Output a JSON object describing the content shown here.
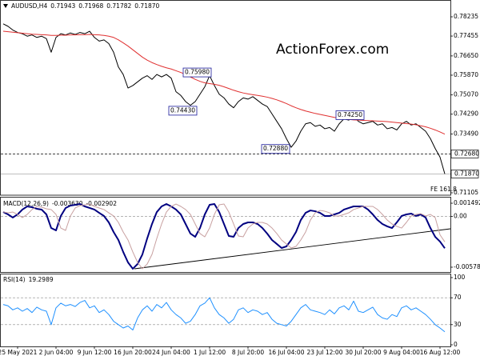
{
  "chart_data": [
    {
      "type": "line",
      "title": "AUDUSD,H4",
      "header_values": [
        0.71943,
        0.71968,
        0.71782,
        {
          "value": 0.7187,
          "label": "0.71870"
        }
      ],
      "watermark": "ActionForex.com",
      "fe_label": "FE 161.8",
      "categories": [
        null,
        null,
        null,
        "25 May 2021",
        null,
        null,
        null,
        null,
        null,
        null,
        null,
        "2 Jun 04:00",
        null,
        null,
        null,
        null,
        null,
        null,
        null,
        "9 Jun 12:00",
        null,
        null,
        null,
        null,
        null,
        null,
        null,
        "16 Jun 20:00",
        null,
        null,
        null,
        null,
        null,
        null,
        null,
        "24 Jun 04:00",
        null,
        null,
        null,
        null,
        null,
        null,
        null,
        "1 Jul 12:00",
        null,
        null,
        null,
        null,
        null,
        null,
        null,
        "8 Jul 20:00",
        null,
        null,
        null,
        null,
        null,
        null,
        null,
        "16 Jul 04:00",
        null,
        null,
        null,
        null,
        null,
        null,
        null,
        "23 Jul 12:00",
        null,
        null,
        null,
        null,
        null,
        null,
        null,
        "30 Jul 20:00",
        null,
        null,
        null,
        null,
        null,
        null,
        null,
        "9 Aug 04:00",
        null,
        null,
        null,
        null,
        null,
        null,
        null,
        "16 Aug 12:00",
        null
      ],
      "series": [
        {
          "color": "#000000",
          "values": [
            0.7795,
            0.7785,
            0.777,
            0.776,
            0.7755,
            0.7745,
            0.775,
            0.774,
            0.7745,
            0.7735,
            0.768,
            0.774,
            0.7755,
            0.775,
            0.7758,
            0.7752,
            0.776,
            0.7755,
            0.7765,
            0.774,
            0.7725,
            0.773,
            0.7715,
            0.768,
            0.762,
            0.759,
            0.7535,
            0.7545,
            0.756,
            0.7575,
            0.7585,
            0.757,
            0.759,
            0.758,
            0.759,
            0.7575,
            0.752,
            0.7505,
            0.748,
            0.7465,
            0.748,
            0.751,
            0.754,
            0.7585,
            0.7545,
            0.751,
            0.7495,
            0.747,
            0.7455,
            0.748,
            0.7495,
            0.749,
            0.75,
            0.7485,
            0.747,
            0.746,
            0.743,
            0.74,
            0.737,
            0.733,
            0.7295,
            0.732,
            0.736,
            0.739,
            0.7395,
            0.738,
            0.7385,
            0.737,
            0.7375,
            0.736,
            0.739,
            0.741,
            0.7405,
            0.742,
            0.74,
            0.739,
            0.7395,
            0.74,
            0.7385,
            0.739,
            0.737,
            0.7375,
            0.7365,
            0.739,
            0.74,
            0.7385,
            0.739,
            0.7375,
            0.736,
            0.733,
            0.729,
            0.7255,
            0.7187
          ]
        },
        {
          "color": "#e03030",
          "values": [
            0.7765,
            0.7763,
            0.7761,
            0.7759,
            0.7757,
            0.7755,
            0.7753,
            0.7752,
            0.7751,
            0.775,
            0.7748,
            0.7748,
            0.7749,
            0.7749,
            0.775,
            0.775,
            0.7751,
            0.7751,
            0.7752,
            0.7751,
            0.775,
            0.7748,
            0.7745,
            0.774,
            0.773,
            0.7718,
            0.7705,
            0.769,
            0.7675,
            0.766,
            0.7648,
            0.7638,
            0.763,
            0.7623,
            0.7617,
            0.7612,
            0.7605,
            0.7598,
            0.759,
            0.758,
            0.757,
            0.7562,
            0.7556,
            0.7553,
            0.755,
            0.7546,
            0.754,
            0.7533,
            0.7526,
            0.752,
            0.7515,
            0.7511,
            0.7508,
            0.7505,
            0.7502,
            0.7498,
            0.7493,
            0.7487,
            0.748,
            0.7472,
            0.7463,
            0.7455,
            0.7448,
            0.7442,
            0.7437,
            0.7432,
            0.7428,
            0.7424,
            0.742,
            0.7416,
            0.7413,
            0.741,
            0.7408,
            0.7406,
            0.7405,
            0.7404,
            0.7403,
            0.7402,
            0.7401,
            0.74,
            0.7399,
            0.7397,
            0.7395,
            0.7393,
            0.7391,
            0.7389,
            0.7386,
            0.7382,
            0.7378,
            0.7372,
            0.7365,
            0.7357,
            0.7348
          ]
        }
      ],
      "annotations": [
        {
          "value": 0.7598,
          "label": "0.75980"
        },
        {
          "value": 0.7443,
          "label": "0.74430"
        },
        {
          "value": 0.7288,
          "label": "0.72880"
        },
        {
          "value": 0.7425,
          "label": "0.74250"
        }
      ],
      "ylim": [
        0.7104,
        0.78786
      ],
      "yticks": [
        0.78235,
        0.77455,
        {
          "value": 0.7665,
          "label": "0.76650"
        },
        {
          "value": 0.7587,
          "label": "0.75870"
        },
        {
          "value": 0.7507,
          "label": "0.75070"
        },
        {
          "value": 0.7429,
          "label": "0.74290"
        },
        {
          "value": 0.7349,
          "label": "0.73490"
        },
        {
          "value": 0.7268,
          "label": "0.72680",
          "boxed": true,
          "line": "dashed"
        },
        {
          "value": 0.7187,
          "label": "0.71870",
          "boxed": true,
          "line": "solid"
        },
        0.71105
      ],
      "grid": false
    },
    {
      "type": "line",
      "title": "MACD(12,26,9)",
      "header_values": [
        {
          "value": -0.00363,
          "label": "-0.003630"
        },
        -0.002902
      ],
      "series": [
        {
          "color": "#000080",
          "width": 2,
          "values": [
            0.00049,
            0.00022,
            -0.00014,
            0.00022,
            0.00077,
            0.00113,
            0.00104,
            0.00086,
            0.00077,
            0.00022,
            -0.00133,
            -0.0016,
            4e-05,
            0.00095,
            0.00122,
            0.00131,
            0.0014,
            0.00113,
            0.00095,
            0.00077,
            0.0004,
            4e-05,
            -0.00069,
            -0.00178,
            -0.00269,
            -0.00405,
            -0.00524,
            -0.00596,
            -0.00542,
            -0.00433,
            -0.00251,
            -0.00087,
            0.00049,
            0.00113,
            0.0014,
            0.00113,
            0.00077,
            0.00022,
            -0.00087,
            -0.00196,
            -0.00233,
            -0.00133,
            0.00022,
            0.00131,
            0.0014,
            0.00049,
            -0.00087,
            -0.00224,
            -0.00233,
            -0.00133,
            -0.00087,
            -0.00069,
            -0.00069,
            -0.00087,
            -0.00133,
            -0.00196,
            -0.00269,
            -0.00314,
            -0.0036,
            -0.00342,
            -0.00269,
            -0.00178,
            -0.00042,
            0.0004,
            0.00067,
            0.00058,
            0.0004,
            4e-05,
            4e-05,
            0.00022,
            0.0004,
            0.00077,
            0.00095,
            0.00113,
            0.00113,
            0.00113,
            0.00077,
            0.00022,
            -0.00042,
            -0.00087,
            -0.00114,
            -0.00133,
            -0.00069,
            4e-05,
            0.00022,
            0.00031,
            4e-05,
            0.00022,
            -0.00014,
            -0.00133,
            -0.00233,
            -0.00287,
            -0.00363
          ]
        },
        {
          "color": "#c8a0a0",
          "width": 1,
          "values": [
            0.0005,
            0.0004,
            0.00049,
            0.00022,
            -0.00014,
            0.00022,
            0.00077,
            0.00113,
            0.00104,
            0.00086,
            0.00077,
            0.00022,
            -0.00133,
            -0.0016,
            4e-05,
            0.00095,
            0.00122,
            0.00131,
            0.0014,
            0.00113,
            0.00095,
            0.00077,
            0.0004,
            4e-05,
            -0.00069,
            -0.00178,
            -0.00269,
            -0.00405,
            -0.00524,
            -0.00596,
            -0.00542,
            -0.00433,
            -0.00251,
            -0.00087,
            0.00049,
            0.00113,
            0.0014,
            0.00113,
            0.00077,
            0.00022,
            -0.00087,
            -0.00196,
            -0.00233,
            -0.00133,
            0.00022,
            0.00131,
            0.0014,
            0.00049,
            -0.00087,
            -0.00224,
            -0.00233,
            -0.00133,
            -0.00087,
            -0.00069,
            -0.00069,
            -0.00087,
            -0.00133,
            -0.00196,
            -0.00269,
            -0.00314,
            -0.0036,
            -0.00342,
            -0.00269,
            -0.00178,
            -0.00042,
            0.0004,
            0.00067,
            0.00058,
            0.0004,
            4e-05,
            4e-05,
            0.00022,
            0.0004,
            0.00077,
            0.00095,
            0.00113,
            0.00113,
            0.00113,
            0.00077,
            0.00022,
            -0.00042,
            -0.00087,
            -0.00114,
            -0.00133,
            -0.00069,
            4e-05,
            0.00022,
            0.00031,
            4e-05,
            0.00022,
            -0.00014,
            -0.0021,
            -0.002902
          ]
        }
      ],
      "ylim": [
        -0.00633,
        0.00204
      ],
      "yticks": [
        0.001492,
        {
          "value": 0,
          "label": "0.00"
        },
        -0.005784
      ],
      "grid": true
    },
    {
      "type": "line",
      "title": "RSI(14)",
      "header_values": [
        19.2989
      ],
      "series": [
        {
          "color": "#1e90ff",
          "width": 1,
          "values": [
            60,
            58,
            52,
            55,
            50,
            54,
            48,
            56,
            52,
            50,
            30,
            55,
            62,
            58,
            60,
            57,
            63,
            66,
            55,
            58,
            48,
            52,
            45,
            35,
            30,
            25,
            28,
            22,
            40,
            52,
            58,
            50,
            60,
            55,
            63,
            52,
            45,
            40,
            32,
            35,
            45,
            58,
            62,
            70,
            55,
            45,
            40,
            32,
            38,
            52,
            55,
            48,
            52,
            50,
            45,
            48,
            38,
            32,
            30,
            28,
            35,
            45,
            55,
            60,
            52,
            50,
            48,
            45,
            52,
            46,
            55,
            58,
            52,
            65,
            50,
            48,
            52,
            56,
            45,
            40,
            38,
            45,
            42,
            55,
            58,
            52,
            55,
            50,
            45,
            38,
            30,
            25,
            19.2989
          ]
        }
      ],
      "ylim": [
        0,
        100
      ],
      "yticks": [
        100,
        70,
        30,
        0
      ],
      "grid": true
    }
  ]
}
